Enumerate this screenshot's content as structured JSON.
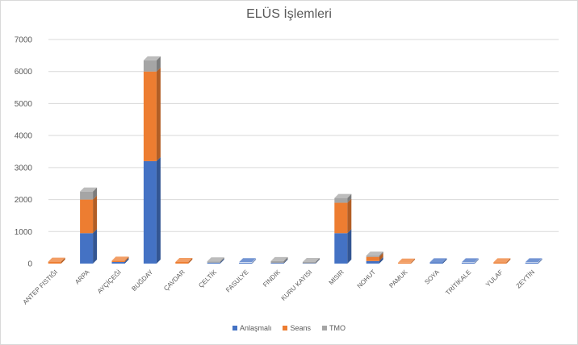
{
  "chart_data": {
    "type": "bar",
    "stacked": true,
    "title": "ELÜS İşlemleri",
    "categories": [
      "ANTEP FISTIĞI",
      "ARPA",
      "AYÇİÇEĞİ",
      "BUĞDAY",
      "ÇAVDAR",
      "ÇELTİK",
      "FASULYE",
      "FINDIK",
      "KURU KAYISI",
      "MISIR",
      "NOHUT",
      "PAMUK",
      "SOYA",
      "TRİTİKALE",
      "YULAF",
      "ZEYTİN"
    ],
    "series": [
      {
        "name": "Anlaşmalı",
        "color": "#4472c4",
        "values": [
          0,
          950,
          50,
          3200,
          0,
          30,
          20,
          20,
          10,
          950,
          80,
          0,
          40,
          15,
          0,
          15
        ]
      },
      {
        "name": "Seans",
        "color": "#ed7d31",
        "values": [
          60,
          1050,
          40,
          2800,
          50,
          0,
          0,
          0,
          0,
          950,
          130,
          30,
          0,
          0,
          40,
          0
        ]
      },
      {
        "name": "TMO",
        "color": "#a5a5a5",
        "values": [
          0,
          250,
          0,
          350,
          0,
          40,
          0,
          60,
          40,
          150,
          40,
          0,
          0,
          0,
          0,
          0
        ]
      }
    ],
    "y_ticks": [
      0,
      1000,
      2000,
      3000,
      4000,
      5000,
      6000,
      7000
    ],
    "ylim": [
      0,
      7000
    ],
    "grid": true,
    "legend_position": "bottom"
  }
}
